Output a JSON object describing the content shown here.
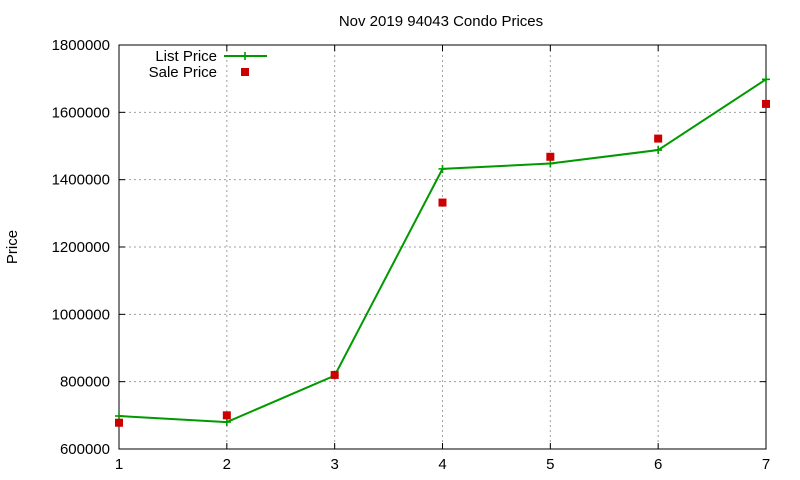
{
  "chart_data": {
    "type": "line",
    "title": "Nov 2019 94043 Condo Prices",
    "xlabel": "",
    "ylabel": "Price",
    "xlim": [
      1,
      7
    ],
    "ylim": [
      600000,
      1800000
    ],
    "xticks": [
      "1",
      "2",
      "3",
      "4",
      "5",
      "6",
      "7"
    ],
    "yticks": [
      "600000",
      "800000",
      "1000000",
      "1200000",
      "1400000",
      "1600000",
      "1800000"
    ],
    "grid": true,
    "legend_position": "top-left",
    "series": [
      {
        "name": "List Price",
        "style": "line-with-plus-markers",
        "color": "#009900",
        "x": [
          1,
          2,
          3,
          4,
          5,
          6,
          7
        ],
        "y": [
          698000,
          680000,
          818000,
          1432000,
          1448000,
          1488000,
          1698000
        ]
      },
      {
        "name": "Sale Price",
        "style": "square-markers",
        "color": "#cc0000",
        "x": [
          1,
          2,
          3,
          4,
          5,
          6,
          7
        ],
        "y": [
          678000,
          700000,
          820000,
          1332000,
          1468000,
          1522000,
          1625000
        ]
      }
    ]
  }
}
